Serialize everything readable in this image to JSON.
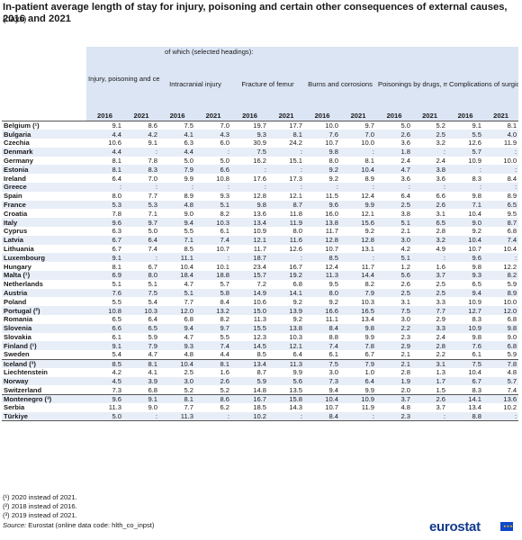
{
  "title": "In-patient average length of stay for injury, poisoning and certain other consequences of external causes, 2016 and 2021",
  "subtitle": "(days)",
  "header": {
    "subheading": "of which (selected headings):",
    "groups": [
      "Injury, poisoning and certain other consequences of external causes",
      "Intracranial injury",
      "Fracture of femur",
      "Burns and corrosions",
      "Poisonings by drugs, medicaments and biological substances and toxic effects",
      "Complications of surgical and medical care, not elsewhere classified"
    ],
    "years": [
      "2016",
      "2021"
    ]
  },
  "rows": [
    {
      "country": "Belgium (¹)",
      "v": [
        "9.1",
        "8.6",
        "7.5",
        "7.0",
        "19.7",
        "17.7",
        "10.0",
        "9.7",
        "5.0",
        "5.2",
        "9.1",
        "8.1"
      ]
    },
    {
      "country": "Bulgaria",
      "v": [
        "4.4",
        "4.2",
        "4.1",
        "4.3",
        "9.3",
        "8.1",
        "7.6",
        "7.0",
        "2.6",
        "2.5",
        "5.5",
        "4.0"
      ]
    },
    {
      "country": "Czechia",
      "v": [
        "10.6",
        "9.1",
        "6.3",
        "6.0",
        "30.9",
        "24.2",
        "10.7",
        "10.0",
        "3.6",
        "3.2",
        "12.6",
        "11.9"
      ]
    },
    {
      "country": "Denmark",
      "v": [
        "4.4",
        ":",
        "4.4",
        ":",
        "7.5",
        ":",
        "9.8",
        ":",
        "1.8",
        ":",
        "5.7",
        ":"
      ]
    },
    {
      "country": "Germany",
      "v": [
        "8.1",
        "7.8",
        "5.0",
        "5.0",
        "16.2",
        "15.1",
        "8.0",
        "8.1",
        "2.4",
        "2.4",
        "10.9",
        "10.0"
      ]
    },
    {
      "country": "Estonia",
      "v": [
        "8.1",
        "8.3",
        "7.9",
        "6.6",
        ":",
        ":",
        "9.2",
        "10.4",
        "4.7",
        "3.8",
        ":",
        ":"
      ]
    },
    {
      "country": "Ireland",
      "v": [
        "6.4",
        "7.0",
        "9.9",
        "10.8",
        "17.6",
        "17.3",
        "9.2",
        "8.9",
        "3.6",
        "3.6",
        "8.3",
        "8.4"
      ]
    },
    {
      "country": "Greece",
      "v": [
        ":",
        ":",
        ":",
        ":",
        ":",
        ":",
        ":",
        ":",
        ":",
        ":",
        ":",
        ":"
      ]
    },
    {
      "country": "Spain",
      "v": [
        "8.0",
        "7.7",
        "8.9",
        "9.3",
        "12.8",
        "12.1",
        "11.5",
        "12.4",
        "6.4",
        "6.6",
        "9.8",
        "8.9"
      ]
    },
    {
      "country": "France",
      "v": [
        "5.3",
        "5.3",
        "4.8",
        "5.1",
        "9.8",
        "8.7",
        "9.6",
        "9.9",
        "2.5",
        "2.6",
        "7.1",
        "6.5"
      ]
    },
    {
      "country": "Croatia",
      "v": [
        "7.8",
        "7.1",
        "9.0",
        "8.2",
        "13.6",
        "11.8",
        "16.0",
        "12.1",
        "3.8",
        "3.1",
        "10.4",
        "9.5"
      ]
    },
    {
      "country": "Italy",
      "v": [
        "9.6",
        "9.7",
        "9.4",
        "10.3",
        "13.4",
        "11.9",
        "13.8",
        "15.6",
        "5.1",
        "6.5",
        "9.0",
        "8.7"
      ]
    },
    {
      "country": "Cyprus",
      "v": [
        "6.3",
        "5.0",
        "5.5",
        "6.1",
        "10.9",
        "8.0",
        "11.7",
        "9.2",
        "2.1",
        "2.8",
        "9.2",
        "6.8"
      ]
    },
    {
      "country": "Latvia",
      "v": [
        "6.7",
        "6.4",
        "7.1",
        "7.4",
        "12.1",
        "11.6",
        "12.8",
        "12.8",
        "3.0",
        "3.2",
        "10.4",
        "7.4"
      ]
    },
    {
      "country": "Lithuania",
      "v": [
        "6.7",
        "7.4",
        "8.5",
        "10.7",
        "11.7",
        "12.6",
        "10.7",
        "13.1",
        "4.2",
        "4.9",
        "10.7",
        "10.4"
      ]
    },
    {
      "country": "Luxembourg",
      "v": [
        "9.1",
        ":",
        "11.1",
        ":",
        "18.7",
        ":",
        "8.5",
        ":",
        "5.1",
        ":",
        "9.6",
        ":"
      ]
    },
    {
      "country": "Hungary",
      "v": [
        "8.1",
        "6.7",
        "10.4",
        "10.1",
        "23.4",
        "16.7",
        "12.4",
        "11.7",
        "1.2",
        "1.6",
        "9.8",
        "12.2"
      ]
    },
    {
      "country": "Malta (¹)",
      "v": [
        "6.9",
        "8.0",
        "18.4",
        "18.8",
        "15.7",
        "19.2",
        "11.3",
        "14.4",
        "5.6",
        "3.7",
        "9.3",
        "8.2"
      ]
    },
    {
      "country": "Netherlands",
      "v": [
        "5.1",
        "5.1",
        "4.7",
        "5.7",
        "7.2",
        "6.8",
        "9.5",
        "8.2",
        "2.6",
        "2.5",
        "6.5",
        "5.9"
      ]
    },
    {
      "country": "Austria",
      "v": [
        "7.6",
        "7.5",
        "5.1",
        "5.8",
        "14.9",
        "14.1",
        "8.0",
        "7.9",
        "2.5",
        "2.5",
        "9.4",
        "8.9"
      ]
    },
    {
      "country": "Poland",
      "v": [
        "5.5",
        "5.4",
        "7.7",
        "8.4",
        "10.6",
        "9.2",
        "9.2",
        "10.3",
        "3.1",
        "3.3",
        "10.9",
        "10.0"
      ]
    },
    {
      "country": "Portugal (²)",
      "v": [
        "10.8",
        "10.3",
        "12.0",
        "13.2",
        "15.0",
        "13.9",
        "16.6",
        "16.5",
        "7.5",
        "7.7",
        "12.7",
        "12.0"
      ]
    },
    {
      "country": "Romania",
      "v": [
        "6.5",
        "6.4",
        "6.8",
        "8.2",
        "11.3",
        "9.2",
        "11.1",
        "13.4",
        "3.0",
        "2.9",
        "8.3",
        "6.8"
      ]
    },
    {
      "country": "Slovenia",
      "v": [
        "6.6",
        "6.5",
        "9.4",
        "9.7",
        "15.5",
        "13.8",
        "8.4",
        "9.8",
        "2.2",
        "3.3",
        "10.9",
        "9.8"
      ]
    },
    {
      "country": "Slovakia",
      "v": [
        "6.1",
        "5.9",
        "4.7",
        "5.5",
        "12.3",
        "10.3",
        "8.8",
        "9.9",
        "2.3",
        "2.4",
        "9.8",
        "9.0"
      ]
    },
    {
      "country": "Finland (¹)",
      "v": [
        "9.1",
        "7.9",
        "9.3",
        "7.4",
        "14.5",
        "12.1",
        "7.4",
        "7.8",
        "2.9",
        "2.8",
        "7.6",
        "6.8"
      ]
    },
    {
      "country": "Sweden",
      "v": [
        "5.4",
        "4.7",
        "4.8",
        "4.4",
        "8.5",
        "6.4",
        "6.1",
        "6.7",
        "2.1",
        "2.2",
        "6.1",
        "5.9"
      ]
    },
    {
      "country": "Iceland (³)",
      "v": [
        "8.5",
        "8.1",
        "10.4",
        "8.1",
        "13.4",
        "11.3",
        "7.5",
        "7.9",
        "2.1",
        "3.1",
        "7.5",
        "7.8"
      ]
    },
    {
      "country": "Liechtenstein",
      "v": [
        "4.2",
        "4.1",
        "2.5",
        "1.6",
        "8.7",
        "9.9",
        "3.0",
        "1.0",
        "2.8",
        "1.3",
        "10.4",
        "4.8"
      ]
    },
    {
      "country": "Norway",
      "v": [
        "4.5",
        "3.9",
        "3.0",
        "2.6",
        "5.9",
        "5.6",
        "7.3",
        "6.4",
        "1.9",
        "1.7",
        "6.7",
        "5.7"
      ]
    },
    {
      "country": "Switzerland",
      "v": [
        "7.3",
        "6.8",
        "5.2",
        "5.2",
        "14.8",
        "13.5",
        "9.4",
        "9.9",
        "2.0",
        "1.5",
        "8.3",
        "7.4"
      ]
    },
    {
      "country": "Montenegro (³)",
      "v": [
        "9.6",
        "9.1",
        "8.1",
        "8.6",
        "16.7",
        "15.8",
        "10.4",
        "10.9",
        "3.7",
        "2.6",
        "14.1",
        "13.6"
      ]
    },
    {
      "country": "Serbia",
      "v": [
        "11.3",
        "9.0",
        "7.7",
        "6.2",
        "18.5",
        "14.3",
        "10.7",
        "11.9",
        "4.8",
        "3.7",
        "13.4",
        "10.2"
      ]
    },
    {
      "country": "Türkiye",
      "v": [
        "5.0",
        ":",
        "11.3",
        ":",
        "10.2",
        ":",
        "8.4",
        ":",
        "2.3",
        ":",
        "8.8",
        ":"
      ]
    }
  ],
  "separator_before": [
    "Iceland (³)",
    "Montenegro (³)"
  ],
  "notes": [
    "(¹) 2020 instead of 2021.",
    "(²) 2018 instead of 2016.",
    "(³) 2019 instead of 2021."
  ],
  "source_label": "Source:",
  "source_text": "Eurostat (online data code: hlth_co_inpst)",
  "logo_text": "eurostat",
  "colors": {
    "header_bg": "#dbe5f4",
    "stripe_bg": "#e8eef8",
    "logo_blue": "#123b8c",
    "flag_blue": "#0e47cb",
    "flag_star": "#ffcc00"
  }
}
